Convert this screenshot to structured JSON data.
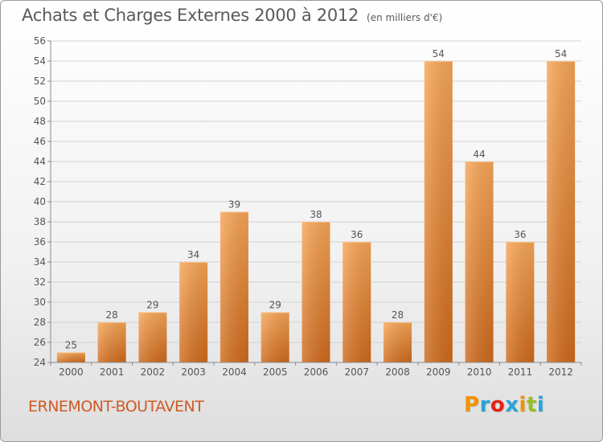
{
  "title": "Achats et Charges Externes 2000 à 2012",
  "subtitle": "(en milliers d'€)",
  "place": "ERNEMONT-BOUTAVENT",
  "logo": {
    "letters": [
      "P",
      "r",
      "o",
      "x",
      "i",
      "t",
      "i"
    ],
    "colors": [
      "#f39200",
      "#2aa3d8",
      "#e2231a",
      "#2aa3d8",
      "#f39200",
      "#95c11f",
      "#2aa3d8"
    ]
  },
  "chart_data": {
    "type": "bar",
    "title": "Achats et Charges Externes 2000 à 2012",
    "subtitle": "(en milliers d'€)",
    "categories": [
      "2000",
      "2001",
      "2002",
      "2003",
      "2004",
      "2005",
      "2006",
      "2007",
      "2008",
      "2009",
      "2010",
      "2011",
      "2012"
    ],
    "values": [
      25,
      28,
      29,
      34,
      39,
      29,
      38,
      36,
      28,
      54,
      44,
      36,
      54
    ],
    "data_labels": [
      "25",
      "28",
      "29",
      "34",
      "39",
      "29",
      "38",
      "36",
      "28",
      "54",
      "44",
      "36",
      "54"
    ],
    "ylim": [
      24,
      56
    ],
    "yticks": [
      24,
      26,
      28,
      30,
      32,
      34,
      36,
      38,
      40,
      42,
      44,
      46,
      48,
      50,
      52,
      54,
      56
    ],
    "ytick_labels": [
      "24",
      "26",
      "28",
      "30",
      "32",
      "34",
      "36",
      "38",
      "40",
      "42",
      "44",
      "46",
      "48",
      "50",
      "52",
      "54",
      "56"
    ],
    "grid": true,
    "bar_color": "#e98a36",
    "bar_color_light": "#f8a657",
    "bar_color_dark": "#cf6a1c"
  }
}
